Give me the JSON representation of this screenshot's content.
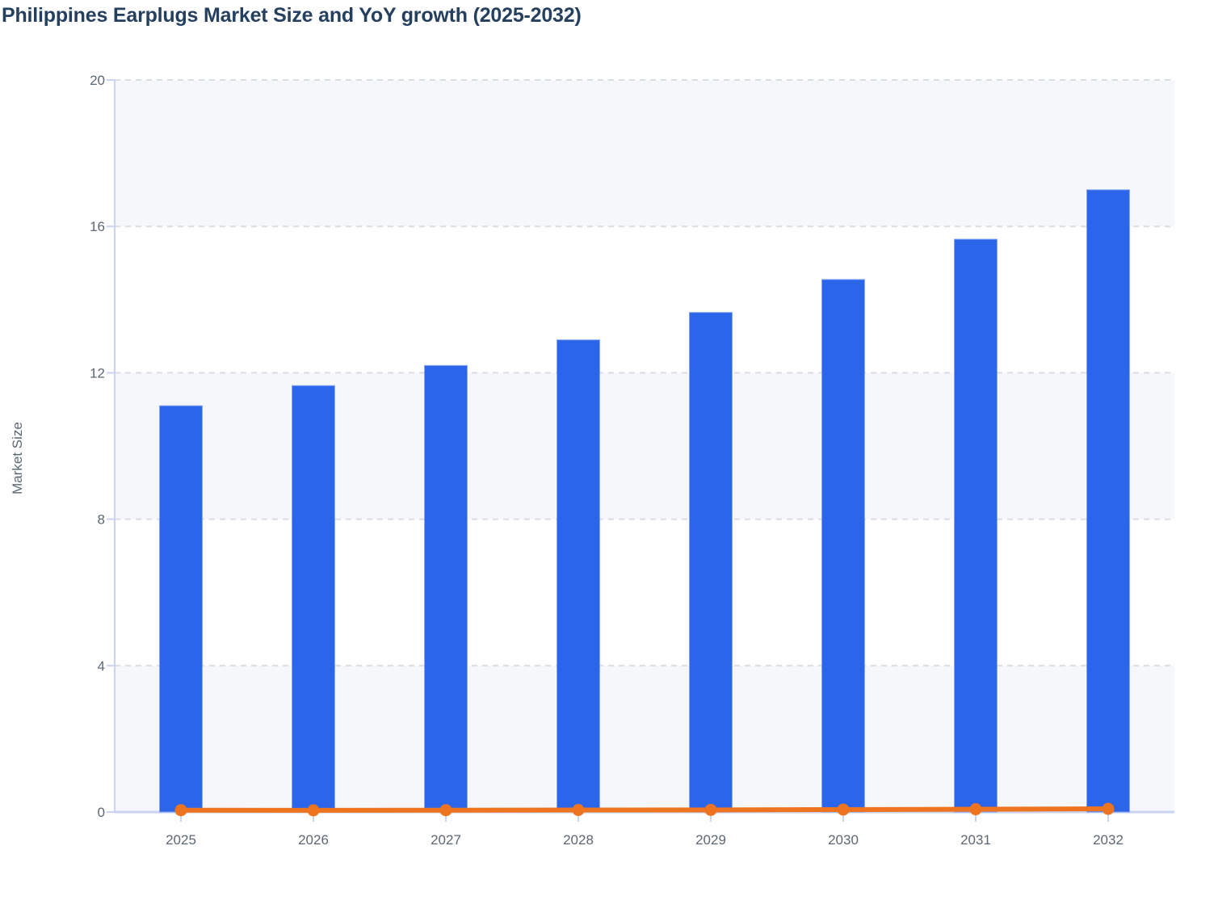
{
  "chart_data": {
    "type": "bar+line",
    "title": "Philippines Earplugs Market Size and YoY growth (2025-2032)",
    "ylabel": "Market Size",
    "xlabel": "",
    "categories": [
      "2025",
      "2026",
      "2027",
      "2028",
      "2029",
      "2030",
      "2031",
      "2032"
    ],
    "series": [
      {
        "name": "Market Size",
        "type": "bar",
        "values": [
          11.1,
          11.65,
          12.2,
          12.9,
          13.65,
          14.55,
          15.65,
          17.0
        ]
      },
      {
        "name": "YoY growth",
        "type": "line",
        "values": [
          0.05,
          0.047,
          0.051,
          0.055,
          0.058,
          0.067,
          0.076,
          0.087
        ]
      }
    ],
    "ylim": [
      0,
      20
    ],
    "yticks": [
      0,
      4,
      8,
      12,
      16,
      20
    ],
    "grid": "horizontal-dashed",
    "legend": "none",
    "plot_bands": "alternating horizontal stripes every 4 units starting gray at 0-4",
    "colors": {
      "bar_fill": "#2b66ea",
      "bar_stroke": "#8aa5f2",
      "line_color": "#ee7420",
      "band_fill": "#f5f7fa",
      "grid_color": "#dadde4",
      "axis_color": "#c9d3f2",
      "title_color": "#25405f",
      "tick_label_color": "#5c6775"
    }
  }
}
